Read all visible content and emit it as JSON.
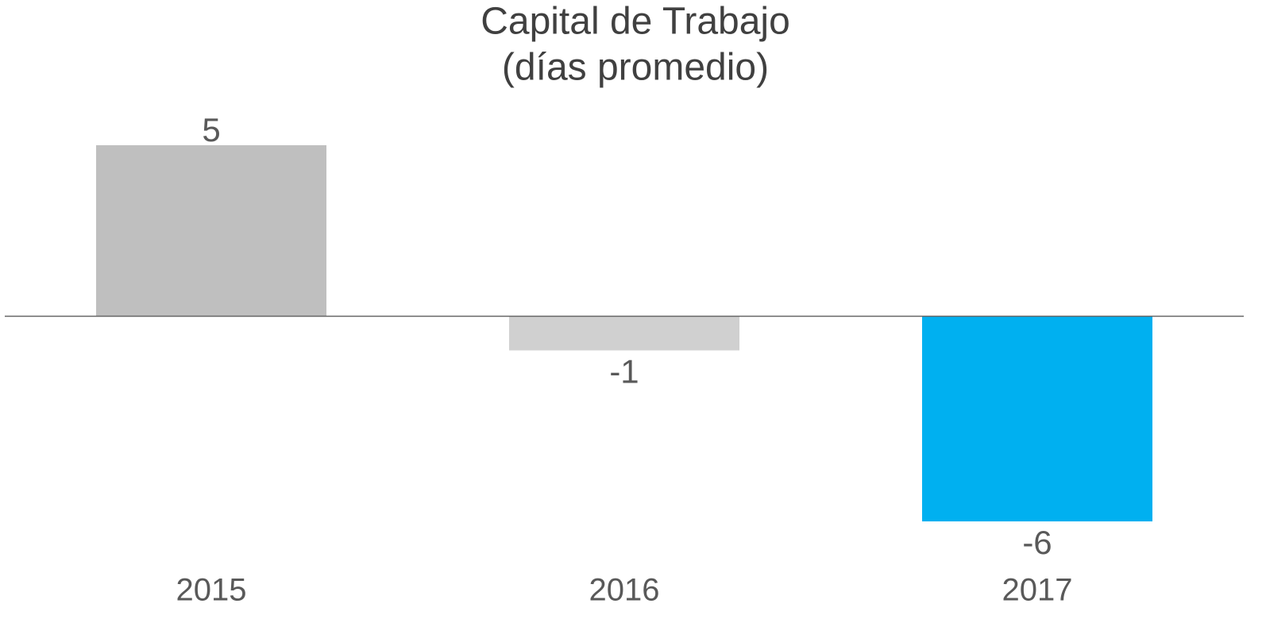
{
  "chart_data": {
    "type": "bar",
    "title": "Capital de Trabajo",
    "subtitle": "(días promedio)",
    "categories": [
      "2015",
      "2016",
      "2017"
    ],
    "values": [
      5,
      -1,
      -6
    ],
    "colors": [
      "#bfbfbf",
      "#d0d0d0",
      "#00b0f0"
    ]
  }
}
